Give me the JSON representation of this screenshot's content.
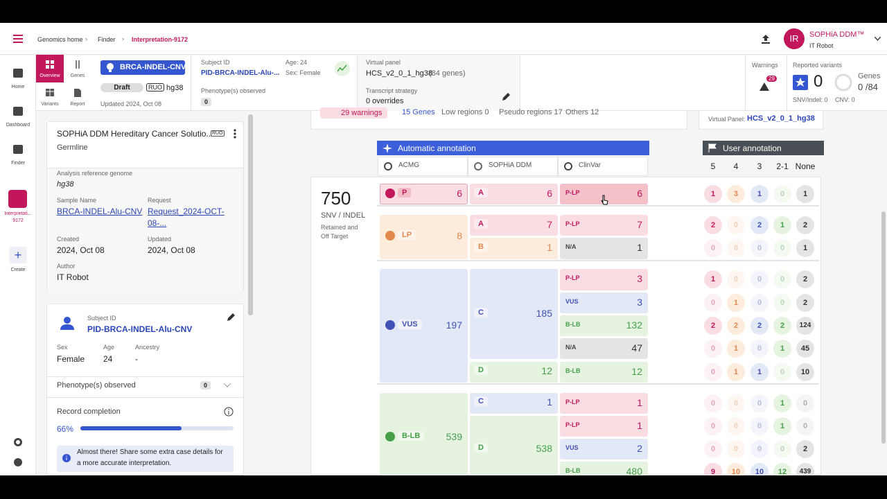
{
  "topbar": {
    "breadcrumbs": [
      "Genomics home",
      "Finder",
      "Interpretation-9172"
    ],
    "user": {
      "initials": "IR",
      "name": "SOPHiA DDM™",
      "role": "IT Robot"
    }
  },
  "sidebar": {
    "nav": [
      "Home",
      "Dashboard",
      "Finder"
    ],
    "active_case": [
      "Interpretati...",
      "9172"
    ],
    "create": "Create"
  },
  "tabs": [
    "Overview",
    "Genes",
    "Variants",
    "Report"
  ],
  "case": {
    "badge": "BRCA-INDEL-CNV",
    "status": "Draft",
    "flag": "RUO",
    "genome": "hg38",
    "updated": "Updated 2024, Oct 08"
  },
  "subject": {
    "label": "Subject ID",
    "id": "PID-BRCA-INDEL-Alu-...",
    "age": "Age: 24",
    "sex": "Sex: Female",
    "phenotype_label": "Phenotype(s) observed",
    "phenotype_count": "0"
  },
  "panel": {
    "label": "Virtual panel",
    "name": "HCS_v2_0_1_hg38",
    "genes": "(84 genes)",
    "transcript_label": "Transcript strategy",
    "transcript": "0 overrides"
  },
  "warnings": {
    "label": "Warnings",
    "count": "29"
  },
  "reported": {
    "label": "Reported variants",
    "count": "0",
    "genes_label": "Genes",
    "genes": "0 /84",
    "snv": "SNV/Indel: 0",
    "cnv": "CNV: 0"
  },
  "analysis_card": {
    "title": "SOPHiA DDM Hereditary Cancer Solutio...",
    "flag": "RUO",
    "subtitle": "Germline",
    "genome_label": "Analysis reference genome",
    "genome": "hg38",
    "sample_label": "Sample Name",
    "sample": "BRCA-INDEL-Alu-CNV",
    "request_label": "Request",
    "request": [
      "Request_2024-OCT-",
      "08-..."
    ],
    "created_label": "Created",
    "created": "2024, Oct 08",
    "updated_label": "Updated",
    "updated": "2024, Oct 08",
    "author_label": "Author",
    "author": "IT Robot"
  },
  "subject_card": {
    "label": "Subject ID",
    "id": "PID-BRCA-INDEL-Alu-CNV",
    "sex_label": "Sex",
    "sex": "Female",
    "age_label": "Age",
    "age": "24",
    "ancestry_label": "Ancestry",
    "ancestry": "-",
    "phenotype_label": "Phenotype(s) observed",
    "phenotype_count": "0",
    "completion_label": "Record completion",
    "completion": "66%",
    "info": [
      "Almost there! Share some extra case details for",
      "a more accurate interpretation."
    ]
  },
  "summary": {
    "warnings": "29 warnings",
    "genes": "15 Genes",
    "low": "Low regions 0",
    "pseudo": "Pseudo regions 17",
    "others": "Others 12",
    "panel_label": "Virtual Panel:",
    "panel": "HCS_v2_0_1_hg38"
  },
  "annotation": {
    "auto_title": "Automatic annotation",
    "columns": [
      "ACMG",
      "SOPHiA DDM",
      "ClinVar"
    ],
    "user_title": "User annotation",
    "user_columns": [
      "5",
      "4",
      "3",
      "2-1",
      "None"
    ],
    "total": "750",
    "total_label": "SNV / INDEL",
    "total_note": [
      "Retained and",
      "Off Target"
    ],
    "groups": [
      {
        "label": "P",
        "count": "6",
        "sophia": [
          {
            "label": "A",
            "count": "6",
            "clinvar": [
              {
                "label": "P-LP",
                "count": "6",
                "user": [
                  "1",
                  "3",
                  "1",
                  "0",
                  "1"
                ]
              }
            ]
          }
        ]
      },
      {
        "label": "LP",
        "count": "8",
        "sophia": [
          {
            "label": "A",
            "count": "7",
            "clinvar": [
              {
                "label": "P-LP",
                "count": "7",
                "user": [
                  "2",
                  "0",
                  "2",
                  "1",
                  "2"
                ]
              }
            ]
          },
          {
            "label": "B",
            "count": "1",
            "clinvar": [
              {
                "label": "N/A",
                "count": "1",
                "user": [
                  "0",
                  "0",
                  "0",
                  "0",
                  "1"
                ]
              }
            ]
          }
        ]
      },
      {
        "label": "VUS",
        "count": "197",
        "sophia": [
          {
            "label": "C",
            "count": "185",
            "clinvar": [
              {
                "label": "P-LP",
                "count": "3",
                "user": [
                  "1",
                  "0",
                  "0",
                  "0",
                  "2"
                ]
              },
              {
                "label": "VUS",
                "count": "3",
                "user": [
                  "0",
                  "1",
                  "0",
                  "0",
                  "2"
                ]
              },
              {
                "label": "B-LB",
                "count": "132",
                "user": [
                  "2",
                  "2",
                  "2",
                  "2",
                  "124"
                ]
              },
              {
                "label": "N/A",
                "count": "47",
                "user": [
                  "0",
                  "1",
                  "0",
                  "1",
                  "45"
                ]
              }
            ]
          },
          {
            "label": "D",
            "count": "12",
            "clinvar": [
              {
                "label": "B-LB",
                "count": "12",
                "user": [
                  "0",
                  "1",
                  "1",
                  "0",
                  "10"
                ]
              }
            ]
          }
        ]
      },
      {
        "label": "B-LB",
        "count": "539",
        "sophia": [
          {
            "label": "C",
            "count": "1",
            "clinvar": [
              {
                "label": "P-LP",
                "count": "1",
                "user": [
                  "0",
                  "0",
                  "0",
                  "1",
                  "0"
                ]
              }
            ]
          },
          {
            "label": "D",
            "count": "538",
            "clinvar": [
              {
                "label": "P-LP",
                "count": "1",
                "user": [
                  "0",
                  "0",
                  "0",
                  "1",
                  "0"
                ]
              },
              {
                "label": "VUS",
                "count": "2",
                "user": [
                  "0",
                  "0",
                  "0",
                  "0",
                  "2"
                ]
              },
              {
                "label": "B-LB",
                "count": "480",
                "user": [
                  "9",
                  "10",
                  "10",
                  "12",
                  "439"
                ]
              }
            ]
          }
        ]
      }
    ]
  }
}
